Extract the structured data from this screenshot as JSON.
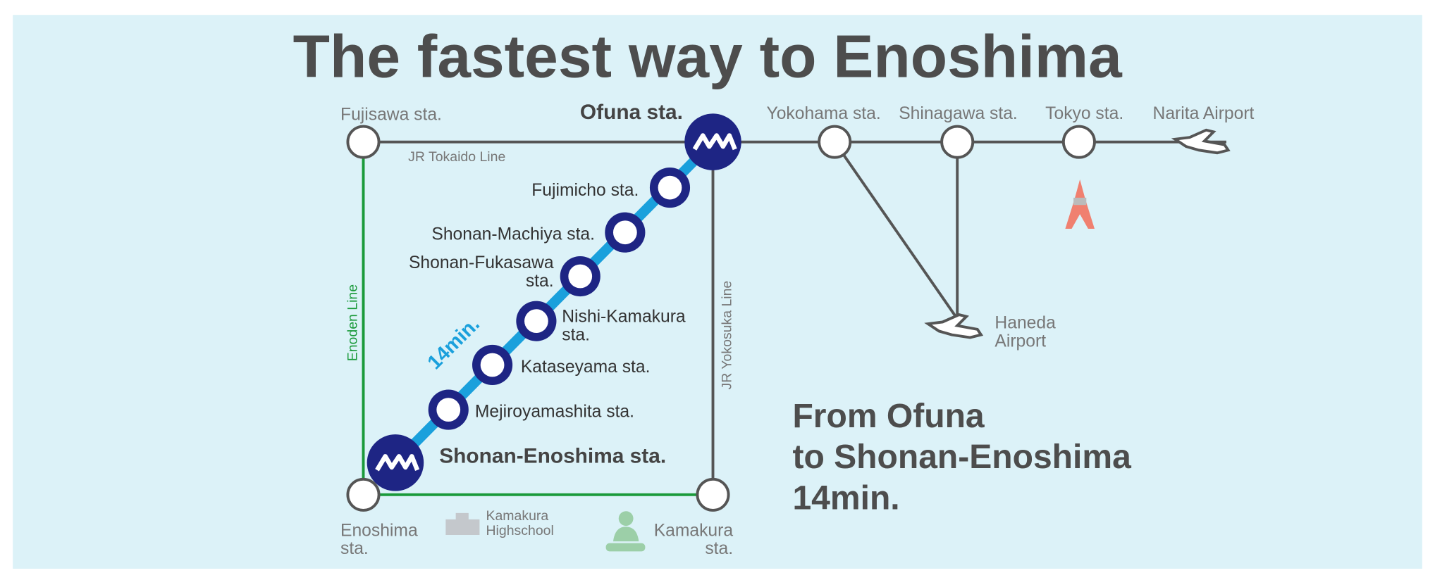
{
  "title": "The fastest way to Enoshima",
  "stations": {
    "fujisawa": [
      "Fujisawa sta."
    ],
    "ofuna": [
      "Ofuna sta."
    ],
    "yokohama": [
      "Yokohama sta."
    ],
    "shinagawa": [
      "Shinagawa sta."
    ],
    "tokyo": [
      "Tokyo sta."
    ],
    "narita": [
      "Narita Airport"
    ],
    "haneda": [
      "Haneda",
      "Airport"
    ],
    "fujimicho": [
      "Fujimicho sta."
    ],
    "machiya": [
      "Shonan-Machiya sta."
    ],
    "fukasawa": [
      "Shonan-Fukasawa",
      "sta."
    ],
    "nishikamakura": [
      "Nishi-Kamakura",
      "sta."
    ],
    "kataseyama": [
      "Kataseyama sta."
    ],
    "mejiroyamashita": [
      "Mejiroyamashita sta."
    ],
    "shonanenoshima": [
      "Shonan-Enoshima sta."
    ],
    "enoshima": [
      "Enoshima",
      "sta."
    ],
    "kamakura": [
      "Kamakura",
      "sta."
    ]
  },
  "lines": {
    "tokaido": "JR Tokaido Line",
    "enoden": "Enoden Line",
    "yokosuka": "JR Yokosuka Line",
    "monorail": "14min."
  },
  "landmarks": {
    "highschool": [
      "Kamakura",
      "Highschool"
    ]
  },
  "summary": [
    "From Ofuna",
    "to Shonan-Enoshima",
    "14min."
  ]
}
